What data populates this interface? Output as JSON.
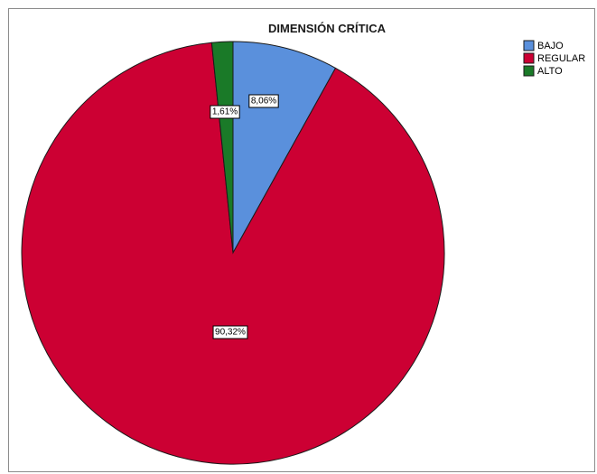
{
  "chart_data": {
    "type": "pie",
    "title": "DIMENSIÓN CRÍTICA",
    "categories": [
      "BAJO",
      "REGULAR",
      "ALTO"
    ],
    "values": [
      8.06,
      90.32,
      1.61
    ],
    "value_labels": [
      "8,06%",
      "90,32%",
      "1,61%"
    ],
    "colors": [
      "#5a90dc",
      "#cc0033",
      "#1a7a28"
    ],
    "start_angle": "12 o'clock",
    "direction": "clockwise",
    "legend": {
      "placement": "top-right",
      "entries": [
        "BAJO",
        "REGULAR",
        "ALTO"
      ]
    }
  }
}
